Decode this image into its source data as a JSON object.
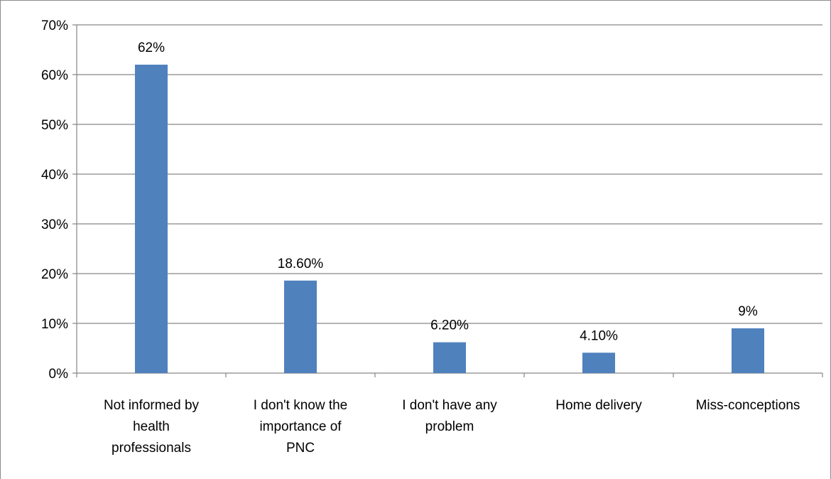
{
  "chart_data": {
    "type": "bar",
    "categories": [
      [
        "Not informed by",
        "health",
        "professionals"
      ],
      [
        "I don't know the",
        "importance of",
        "PNC"
      ],
      [
        "I don't have any",
        "problem"
      ],
      [
        "Home delivery"
      ],
      [
        "Miss-conceptions"
      ]
    ],
    "values": [
      62,
      18.6,
      6.2,
      4.1,
      9
    ],
    "data_labels": [
      "62%",
      "18.60%",
      "6.20%",
      "4.10%",
      "9%"
    ],
    "y_ticks": [
      "0%",
      "10%",
      "20%",
      "30%",
      "40%",
      "50%",
      "60%",
      "70%"
    ],
    "ylim": [
      0,
      70
    ],
    "grid": true,
    "legend": "none",
    "bar_color": "#4f81bd",
    "grid_color": "#868686"
  }
}
